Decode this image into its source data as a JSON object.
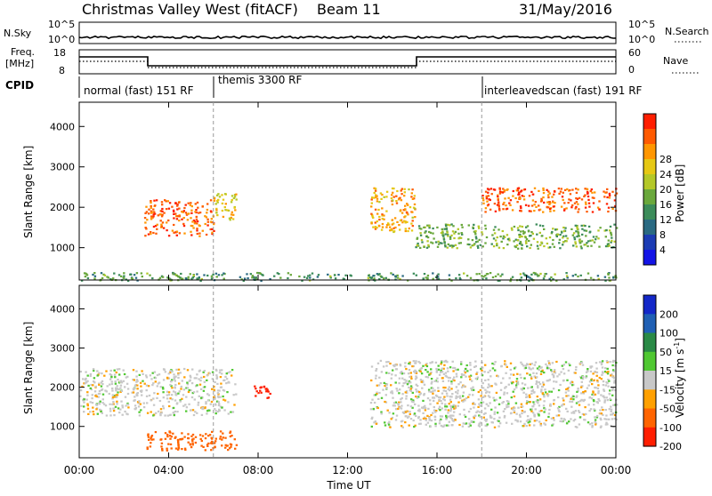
{
  "header": {
    "station": "Christmas Valley West (fitACF)",
    "beam": "Beam 11",
    "date": "31/May/2016"
  },
  "strip_labels": {
    "nsky": "N.Sky",
    "nsky_ticks": [
      "10^5",
      "10^0"
    ],
    "nsearch": "N.Search",
    "freq_line1": "Freq.",
    "freq_line2": "[MHz]",
    "freq_ticks": [
      "18",
      "8"
    ],
    "nave": "Nave",
    "nave_ticks": [
      "60",
      "0"
    ],
    "cpid": "CPID"
  },
  "cpid_segments": [
    {
      "label": "normal (fast) 151 RF",
      "start_hour": 0,
      "end_hour": 6
    },
    {
      "label": "themis 3300 RF",
      "start_hour": 6,
      "end_hour": 18
    },
    {
      "label": "interleavedscan (fast) 191 RF",
      "start_hour": 18,
      "end_hour": 24
    }
  ],
  "chart_data": [
    {
      "type": "heatmap",
      "quantity": "Power",
      "ylabel": "Slant Range [km]",
      "xlabel": "",
      "xlim": [
        0,
        24
      ],
      "ylim": [
        200,
        4600
      ],
      "x_ticks": [
        0,
        4,
        8,
        12,
        16,
        20,
        24
      ],
      "y_ticks": [
        1000,
        2000,
        3000,
        4000
      ],
      "colorbar": {
        "label": "Power [dB]",
        "ticks": [
          "4",
          "8",
          "12",
          "16",
          "20",
          "24",
          "28"
        ],
        "colors": [
          "#1414e6",
          "#1c3cb4",
          "#2a6a82",
          "#3c8c5a",
          "#6aa83c",
          "#b4c828",
          "#e6c814",
          "#ff9600",
          "#ff5a00",
          "#ff1e00"
        ]
      },
      "features": [
        {
          "desc": "strong echo",
          "t_start": 2.9,
          "t_end": 6.0,
          "range_start": 1300,
          "range_end": 2200,
          "level": 26
        },
        {
          "desc": "echo",
          "t_start": 6.0,
          "t_end": 7.0,
          "range_start": 1700,
          "range_end": 2400,
          "level": 20
        },
        {
          "desc": "echo",
          "t_start": 13.0,
          "t_end": 15.0,
          "range_start": 1400,
          "range_end": 2500,
          "level": 22
        },
        {
          "desc": "strong echo",
          "t_start": 18.0,
          "t_end": 24.0,
          "range_start": 1900,
          "range_end": 2500,
          "level": 26
        },
        {
          "desc": "band",
          "t_start": 15.0,
          "t_end": 24.0,
          "range_start": 1000,
          "range_end": 1600,
          "level": 14
        },
        {
          "desc": "near range",
          "t_start": 0.0,
          "t_end": 24.0,
          "range_start": 200,
          "range_end": 400,
          "level": 12
        }
      ]
    },
    {
      "type": "heatmap",
      "quantity": "Velocity",
      "ylabel": "Slant Range [km]",
      "xlabel": "Time UT",
      "xlim": [
        0,
        24
      ],
      "ylim": [
        200,
        4600
      ],
      "x_tick_labels": [
        "00:00",
        "04:00",
        "08:00",
        "12:00",
        "16:00",
        "20:00",
        "00:00"
      ],
      "y_ticks": [
        1000,
        2000,
        3000,
        4000
      ],
      "colorbar": {
        "label": "Velocity [m s^-1]",
        "ticks": [
          "200",
          "100",
          "50",
          "15",
          "-15",
          "-50",
          "-100",
          "-200"
        ],
        "colors": [
          "#1428c8",
          "#2060b4",
          "#2a8a46",
          "#50c832",
          "#c8c8c8",
          "#ffa000",
          "#ff6400",
          "#ff1e00"
        ]
      },
      "features": [
        {
          "desc": "ground scatter",
          "t_start": 0.0,
          "t_end": 7.0,
          "range_start": 1300,
          "range_end": 2500,
          "velocity": 0
        },
        {
          "desc": "ground scatter",
          "t_start": 13.0,
          "t_end": 24.0,
          "range_start": 1000,
          "range_end": 2700,
          "velocity": 0
        },
        {
          "desc": "negative velocity patch",
          "t_start": 7.8,
          "t_end": 8.5,
          "range_start": 1750,
          "range_end": 2050,
          "velocity": -200
        },
        {
          "desc": "negative velocity",
          "t_start": 3.0,
          "t_end": 7.0,
          "range_start": 400,
          "range_end": 900,
          "velocity": -50
        }
      ]
    }
  ]
}
